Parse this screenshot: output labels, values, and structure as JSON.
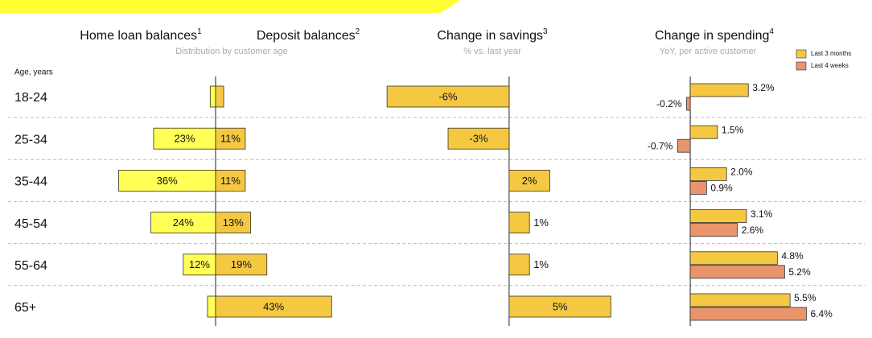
{
  "chart_data": {
    "type": "panel-bar",
    "category_axis_label": "Age, years",
    "categories": [
      "18-24",
      "25-34",
      "35-44",
      "45-54",
      "55-64",
      "65+"
    ],
    "panels": [
      {
        "title": "Home loan balances",
        "note": "1",
        "xlim": [
          40,
          0
        ],
        "color": "#ffff55",
        "values": [
          2,
          23,
          36,
          24,
          12,
          3
        ],
        "value_labels": [
          null,
          "23%",
          "36%",
          "24%",
          "12%",
          null
        ]
      },
      {
        "title": "Deposit balances",
        "note": "2",
        "subtitle": "Distribution by customer age",
        "xlim": [
          0,
          45
        ],
        "color": "#f5c842",
        "values": [
          3,
          11,
          11,
          13,
          19,
          43
        ],
        "value_labels": [
          null,
          "11%",
          "11%",
          "13%",
          "19%",
          "43%"
        ]
      },
      {
        "title": "Change in savings",
        "note": "3",
        "subtitle": "% vs. last year",
        "xlim": [
          -6.5,
          5.5
        ],
        "color": "#f5c842",
        "values": [
          -6,
          -3,
          2,
          1,
          1,
          5
        ],
        "value_labels": [
          "-6%",
          "-3%",
          "2%",
          "1%",
          "1%",
          "5%"
        ]
      },
      {
        "title": "Change in spending",
        "note": "4",
        "subtitle": "YoY, per active customer",
        "xlim": [
          -0.8,
          7
        ],
        "legend": "top-right",
        "series": [
          {
            "name": "Last 3 months",
            "color": "#f5c842",
            "values": [
              3.2,
              1.5,
              2.0,
              3.1,
              4.8,
              5.5
            ],
            "value_labels": [
              "3.2%",
              "1.5%",
              "2.0%",
              "3.1%",
              "4.8%",
              "5.5%"
            ]
          },
          {
            "name": "Last 4 weeks",
            "color": "#e9946a",
            "values": [
              -0.2,
              -0.7,
              0.9,
              2.6,
              5.2,
              6.4
            ],
            "value_labels": [
              "-0.2%",
              "-0.7%",
              "0.9%",
              "2.6%",
              "5.2%",
              "6.4%"
            ]
          }
        ]
      }
    ]
  }
}
